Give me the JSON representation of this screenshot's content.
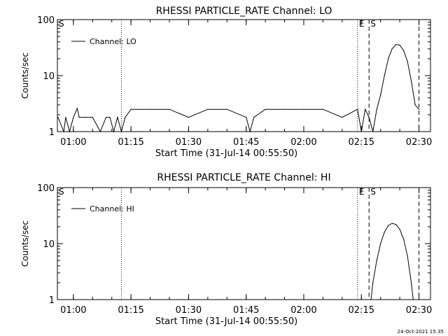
{
  "footer_timestamp": "24-Oct-2021 15:35",
  "chart_data": [
    {
      "type": "line",
      "title": "RHESSI PARTICLE_RATE Channel: LO",
      "xlabel": "Start Time (31-Jul-14 00:55:50)",
      "ylabel": "Counts/sec",
      "y_scale": "log",
      "ylim": [
        1,
        100
      ],
      "y_ticks": [
        "1",
        "10",
        "100"
      ],
      "x_ticks": [
        "01:00",
        "01:15",
        "01:30",
        "01:45",
        "02:00",
        "02:15",
        "02:30"
      ],
      "legend": "top-left",
      "series": [
        {
          "name": "Channel: LO",
          "x": [
            "00:56:00",
            "00:57:30",
            "00:58:00",
            "00:59:00",
            "01:00:00",
            "01:01:00",
            "01:01:30",
            "01:03:00",
            "01:05:00",
            "01:07:00",
            "01:08:30",
            "01:09:30",
            "01:10:30",
            "01:11:30",
            "01:12:30",
            "01:13:30",
            "01:15:00",
            "01:20:00",
            "01:25:00",
            "01:30:00",
            "01:35:00",
            "01:40:00",
            "01:45:00",
            "01:46:00",
            "01:47:00",
            "01:50:00",
            "01:55:00",
            "02:00:00",
            "02:05:00",
            "02:10:00",
            "02:14:00",
            "02:15:00",
            "02:16:00",
            "02:17:00",
            "02:18:00",
            "02:19:00",
            "02:20:00",
            "02:21:00",
            "02:22:00",
            "02:23:00",
            "02:24:00",
            "02:25:00",
            "02:26:00",
            "02:27:00",
            "02:28:00",
            "02:29:00",
            "02:30:00"
          ],
          "y": [
            1.8,
            1.0,
            1.8,
            1.0,
            1.8,
            2.6,
            1.8,
            1.8,
            1.8,
            1.0,
            1.8,
            1.8,
            1.0,
            1.8,
            1.0,
            1.8,
            2.5,
            2.5,
            2.5,
            1.8,
            2.5,
            2.5,
            1.8,
            1.0,
            1.8,
            2.5,
            2.5,
            2.5,
            2.5,
            1.8,
            2.5,
            1.0,
            2.5,
            1.8,
            1.0,
            2.5,
            4.5,
            10,
            20,
            30,
            36,
            35,
            28,
            18,
            8,
            3,
            2.5
          ]
        }
      ],
      "vertical_markers": [
        {
          "label": "S",
          "time": "00:55:50",
          "style": "dotted"
        },
        {
          "label": "",
          "time": "01:12:30",
          "style": "dotted"
        },
        {
          "label": "E",
          "time": "02:14:00",
          "style": "dotted"
        },
        {
          "label": "S",
          "time": "02:17:00",
          "style": "dashed"
        },
        {
          "label": "",
          "time": "02:30:00",
          "style": "dashed"
        }
      ]
    },
    {
      "type": "line",
      "title": "RHESSI PARTICLE_RATE Channel: HI",
      "xlabel": "Start Time (31-Jul-14 00:55:50)",
      "ylabel": "Counts/sec",
      "y_scale": "log",
      "ylim": [
        1,
        100
      ],
      "y_ticks": [
        "1",
        "10",
        "100"
      ],
      "x_ticks": [
        "01:00",
        "01:15",
        "01:30",
        "01:45",
        "02:00",
        "02:15",
        "02:30"
      ],
      "legend": "top-left",
      "series": [
        {
          "name": "Channel: HI",
          "x": [
            "02:17:30",
            "02:18:00",
            "02:19:00",
            "02:20:00",
            "02:21:00",
            "02:22:00",
            "02:23:00",
            "02:24:00",
            "02:25:00",
            "02:26:00",
            "02:27:00",
            "02:28:00",
            "02:28:30"
          ],
          "y": [
            1.0,
            2.0,
            5,
            10,
            16,
            21,
            23,
            22,
            18,
            12,
            6,
            2,
            1.0
          ]
        }
      ],
      "vertical_markers": [
        {
          "label": "S",
          "time": "00:55:50",
          "style": "dotted"
        },
        {
          "label": "",
          "time": "01:12:30",
          "style": "dotted"
        },
        {
          "label": "E",
          "time": "02:14:00",
          "style": "dotted"
        },
        {
          "label": "S",
          "time": "02:17:00",
          "style": "dashed"
        },
        {
          "label": "",
          "time": "02:30:00",
          "style": "dashed"
        }
      ]
    }
  ]
}
